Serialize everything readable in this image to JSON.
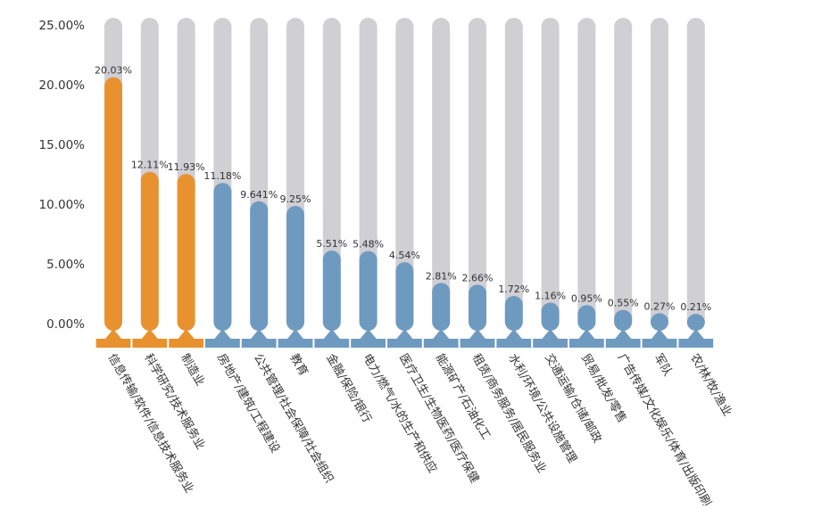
{
  "colors": {
    "track": "#cfcfd4",
    "highlight": "#e8922f",
    "normal": "#6f9ac0",
    "text": "#333333"
  },
  "chart_data": {
    "type": "bar",
    "title": "",
    "xlabel": "",
    "ylabel": "",
    "ylim": [
      0,
      25
    ],
    "yticks": [
      {
        "value": 0,
        "label": "0.00%"
      },
      {
        "value": 5,
        "label": "5.00%"
      },
      {
        "value": 10,
        "label": "10.00%"
      },
      {
        "value": 15,
        "label": "15.00%"
      },
      {
        "value": 20,
        "label": "20.00%"
      },
      {
        "value": 25,
        "label": "25.00%"
      }
    ],
    "categories": [
      "信息传输/软件/信息技术服务业",
      "科学研究/技术服务业",
      "制造业",
      "房地产/建筑/工程建设",
      "公共管理/社会保障/社会组织",
      "教育",
      "金融/保险/银行",
      "电力/燃气/水的生产和供应",
      "医疗卫生/生物医药/医疗保健",
      "能源矿产/石油化工",
      "租赁/商务服务/居民服务业",
      "水利/环境/公共设施管理",
      "交通运输/仓储/邮政",
      "贸易/批发/零售",
      "广告传媒/文化娱乐/体育/出版印刷",
      "军队",
      "农/林/牧/渔业"
    ],
    "values": [
      20.03,
      12.11,
      11.93,
      11.18,
      9.641,
      9.25,
      5.51,
      5.48,
      4.54,
      2.81,
      2.66,
      1.72,
      1.16,
      0.95,
      0.55,
      0.27,
      0.21
    ],
    "labels": [
      "20.03%",
      "12.11%",
      "11.93%",
      "11.18%",
      "9.641%",
      "9.25%",
      "5.51%",
      "5.48%",
      "4.54%",
      "2.81%",
      "2.66%",
      "1.72%",
      "1.16%",
      "0.95%",
      "0.55%",
      "0.27%",
      "0.21%"
    ],
    "highlighted_count": 3,
    "grid": false,
    "legend": "none"
  }
}
